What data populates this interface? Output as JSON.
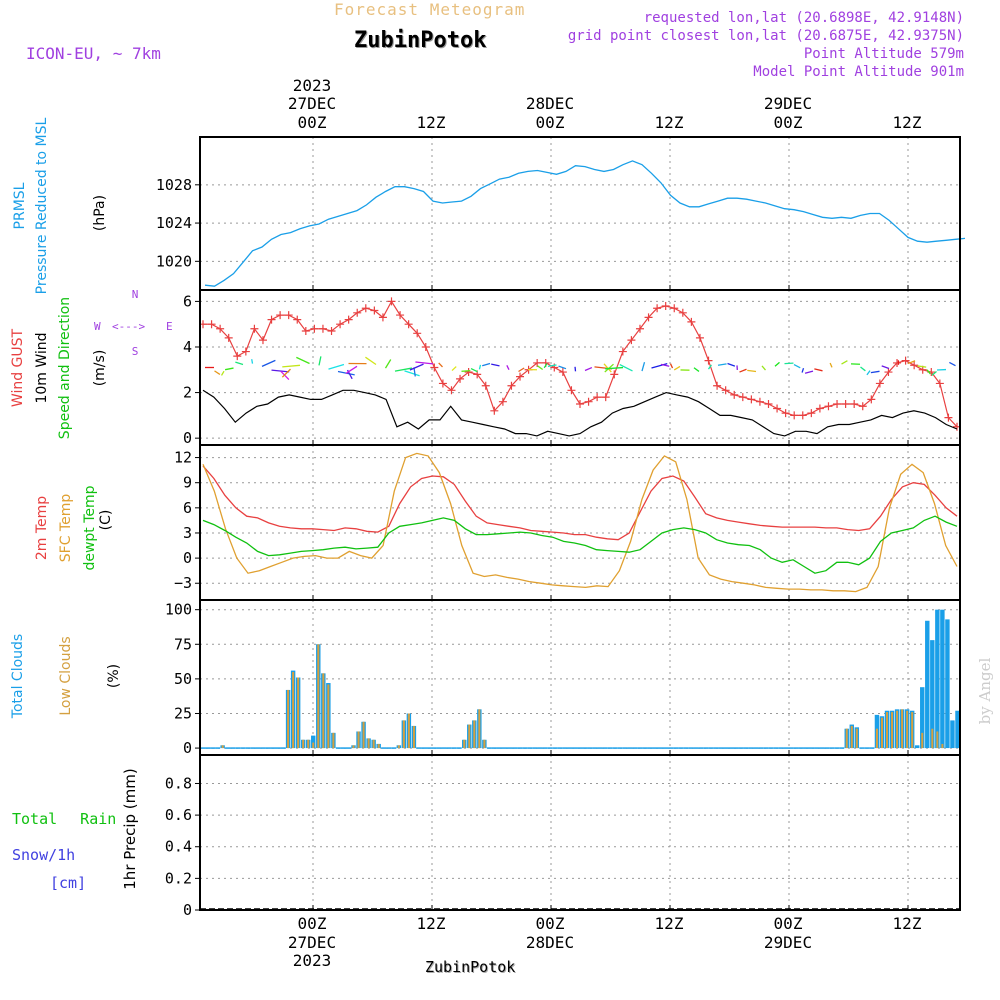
{
  "header": {
    "subtitle": "Forecast Meteogram",
    "location": "ZubinPotok",
    "model": "ICON-EU, ~ 7km",
    "requested": "requested lon,lat (20.6898E, 42.9148N)",
    "closest": "grid point closest lon,lat (20.6875E, 42.9375N)",
    "point_altitude": "Point Altitude 579m",
    "model_altitude": "Model Point Altitude 901m",
    "footer_location": "ZubinPotok",
    "watermark": "by Angel"
  },
  "colors": {
    "pressure": "#1a9fe8",
    "gust": "#e84040",
    "wind": "#000000",
    "temp2m": "#e84040",
    "sfc": "#e0a030",
    "dewpt": "#10c010",
    "total_clouds": "#1a9fe8",
    "low_clouds": "#d4a040",
    "rain": "#10c010",
    "snow": "#4040e0",
    "compass": "#a040e0",
    "header_purple": "#a040e0",
    "subtitle": "#e8c080"
  },
  "time_axis": {
    "top_year": "2023",
    "top_dates": [
      "27DEC",
      "28DEC",
      "29DEC"
    ],
    "ticks": [
      "00Z",
      "12Z",
      "00Z",
      "12Z",
      "00Z",
      "12Z"
    ],
    "bottom_dates": [
      "27DEC",
      "28DEC",
      "29DEC"
    ],
    "bottom_year": "2023"
  },
  "panels": {
    "pressure": {
      "labels": [
        "PRMSL",
        "Pressure Reduced to MSL"
      ],
      "unit": "(hPa)"
    },
    "wind": {
      "labels": [
        "Wind GUST",
        "10m Wind",
        "Speed and Direction"
      ],
      "unit": "(m/s)",
      "compass": {
        "n": "N",
        "s": "S",
        "e": "E",
        "w": "W",
        "line": "<--->"
      }
    },
    "temp": {
      "labels": [
        "2m Temp",
        "SFC Temp",
        "dewpt Temp"
      ],
      "unit": "(C)"
    },
    "clouds": {
      "labels": [
        "Total Clouds",
        "Low Clouds"
      ],
      "unit": "(%)"
    },
    "precip": {
      "labels": [
        "Total Rain",
        "Snow/1h",
        "[cm]"
      ],
      "unit": "1hr Precip (mm)"
    }
  },
  "chart_data": [
    {
      "type": "line",
      "name": "pressure",
      "x_hours_from_27DEC_00Z_start": -11,
      "step_hours": 1,
      "ylim": [
        1017,
        1033
      ],
      "yticks": [
        1020,
        1024,
        1028
      ],
      "series": [
        {
          "name": "PRMSL",
          "values": [
            1017.5,
            1017.4,
            1018,
            1018.7,
            1019.9,
            1021.1,
            1021.5,
            1022.3,
            1022.8,
            1023,
            1023.4,
            1023.7,
            1023.9,
            1024.4,
            1024.7,
            1025,
            1025.3,
            1025.9,
            1026.7,
            1027.3,
            1027.8,
            1027.8,
            1027.6,
            1027.3,
            1026.3,
            1026.1,
            1026.2,
            1026.3,
            1026.8,
            1027.6,
            1028.1,
            1028.6,
            1028.8,
            1029.2,
            1029.4,
            1029.5,
            1029.3,
            1029.1,
            1029.4,
            1030,
            1029.9,
            1029.6,
            1029.4,
            1029.6,
            1030.1,
            1030.5,
            1030.1,
            1029.2,
            1028.2,
            1026.9,
            1026.1,
            1025.7,
            1025.7,
            1026,
            1026.3,
            1026.6,
            1026.6,
            1026.5,
            1026.3,
            1026.1,
            1025.8,
            1025.5,
            1025.4,
            1025.2,
            1024.9,
            1024.6,
            1024.5,
            1024.6,
            1024.5,
            1024.8,
            1025,
            1025,
            1024.3,
            1023.4,
            1022.5,
            1022.1,
            1022,
            1022.1,
            1022.2,
            1022.3,
            1022.4
          ]
        }
      ]
    },
    {
      "type": "line",
      "name": "wind",
      "ylim": [
        -0.3,
        6.5
      ],
      "yticks": [
        0,
        2,
        4,
        6
      ],
      "series": [
        {
          "name": "Wind GUST",
          "values": [
            5,
            5,
            4.8,
            4.4,
            3.6,
            3.8,
            4.8,
            4.3,
            5.2,
            5.4,
            5.4,
            5.2,
            4.7,
            4.8,
            4.8,
            4.7,
            5,
            5.2,
            5.5,
            5.7,
            5.6,
            5.3,
            6,
            5.4,
            5,
            4.6,
            4,
            3.1,
            2.4,
            2.1,
            2.6,
            2.9,
            2.8,
            2.3,
            1.2,
            1.6,
            2.3,
            2.7,
            3,
            3.3,
            3.3,
            3.1,
            2.9,
            2.1,
            1.5,
            1.6,
            1.8,
            1.8,
            2.8,
            3.8,
            4.3,
            4.8,
            5.3,
            5.7,
            5.8,
            5.7,
            5.5,
            5.1,
            4.4,
            3.4,
            2.3,
            2.1,
            1.9,
            1.8,
            1.7,
            1.6,
            1.5,
            1.3,
            1.1,
            1,
            1,
            1.1,
            1.3,
            1.4,
            1.5,
            1.5,
            1.5,
            1.4,
            1.7,
            2.4,
            2.9,
            3.3,
            3.4,
            3.2,
            3,
            2.9,
            2.4,
            0.9,
            0.5
          ]
        },
        {
          "name": "10m Wind",
          "values": [
            2.1,
            1.8,
            1.3,
            0.7,
            1.1,
            1.4,
            1.5,
            1.8,
            1.9,
            1.8,
            1.7,
            1.7,
            1.9,
            2.1,
            2.1,
            2,
            1.9,
            1.7,
            0.5,
            0.7,
            0.4,
            0.8,
            0.8,
            1.4,
            0.8,
            0.7,
            0.6,
            0.5,
            0.4,
            0.2,
            0.2,
            0.1,
            0.3,
            0.2,
            0.1,
            0.2,
            0.5,
            0.7,
            1.1,
            1.3,
            1.4,
            1.6,
            1.8,
            2,
            1.9,
            1.8,
            1.6,
            1.3,
            1,
            1,
            0.9,
            0.8,
            0.5,
            0.2,
            0.1,
            0.3,
            0.3,
            0.2,
            0.5,
            0.6,
            0.6,
            0.7,
            0.8,
            1,
            0.9,
            1.1,
            1.2,
            1.1,
            0.9,
            0.6,
            0.4
          ]
        }
      ]
    },
    {
      "type": "line",
      "name": "temperature",
      "ylim": [
        -5,
        13.5
      ],
      "yticks": [
        -3,
        0,
        3,
        6,
        9,
        12
      ],
      "series": [
        {
          "name": "2m Temp",
          "values": [
            11,
            9.5,
            7.5,
            6,
            5,
            4.8,
            4.2,
            3.8,
            3.6,
            3.5,
            3.5,
            3.4,
            3.3,
            3.6,
            3.5,
            3.2,
            3.1,
            3.8,
            6.5,
            8.5,
            9.5,
            9.8,
            9.7,
            8.8,
            6.8,
            5,
            4.2,
            4,
            3.8,
            3.6,
            3.3,
            3.2,
            3.1,
            3,
            2.8,
            2.8,
            2.5,
            2.3,
            2.2,
            3,
            5.5,
            8,
            9.5,
            9.8,
            9.2,
            7.3,
            5.3,
            4.8,
            4.5,
            4.3,
            4.1,
            3.9,
            3.8,
            3.7,
            3.7,
            3.7,
            3.7,
            3.6,
            3.6,
            3.4,
            3.3,
            3.5,
            5,
            7,
            8.5,
            9,
            8.8,
            7.5,
            6,
            5
          ]
        },
        {
          "name": "SFC Temp",
          "values": [
            11.2,
            8,
            3.5,
            0,
            -1.8,
            -1.5,
            -1,
            -0.5,
            0,
            0.2,
            0.3,
            0,
            0,
            0.8,
            0.3,
            0,
            1.5,
            8,
            12,
            12.5,
            12.2,
            10.2,
            6.5,
            1.5,
            -1.8,
            -2.2,
            -2,
            -2.3,
            -2.5,
            -2.8,
            -3,
            -3.2,
            -3.3,
            -3.4,
            -3.5,
            -3.3,
            -3.4,
            -1.5,
            2,
            7,
            10.5,
            12.2,
            11.5,
            7,
            0,
            -2,
            -2.5,
            -2.8,
            -3,
            -3.2,
            -3.5,
            -3.6,
            -3.7,
            -3.7,
            -3.8,
            -3.8,
            -3.9,
            -3.9,
            -4,
            -3.5,
            -1,
            6,
            10,
            11.2,
            10.2,
            6.5,
            1.5,
            -1
          ]
        },
        {
          "name": "dewpt Temp",
          "values": [
            4.5,
            4,
            3.3,
            2.5,
            1.8,
            0.8,
            0.3,
            0.4,
            0.6,
            0.8,
            0.9,
            1,
            1.2,
            1.3,
            1.1,
            1.2,
            1.3,
            3,
            3.8,
            4,
            4.2,
            4.5,
            4.8,
            4.5,
            3.5,
            2.8,
            2.8,
            2.9,
            3,
            3.1,
            3,
            2.7,
            2.5,
            2,
            1.8,
            1.5,
            1,
            0.9,
            0.8,
            0.7,
            1,
            2,
            3,
            3.4,
            3.6,
            3.4,
            3,
            2.2,
            1.8,
            1.6,
            1.5,
            1,
            0,
            -0.5,
            -0.2,
            -1,
            -1.8,
            -1.5,
            -0.5,
            -0.5,
            -0.8,
            0,
            2,
            3,
            3.3,
            3.6,
            4.5,
            5,
            4.3,
            3.8
          ]
        }
      ]
    },
    {
      "type": "bar",
      "name": "clouds",
      "ylim": [
        -5,
        107
      ],
      "yticks": [
        0,
        25,
        50,
        75,
        100
      ],
      "series": [
        {
          "name": "Total Clouds",
          "values": [
            0,
            0,
            0,
            0,
            2,
            0,
            0,
            0,
            0,
            0,
            0,
            0,
            0,
            0,
            0,
            0,
            0,
            42,
            56,
            51,
            6,
            6,
            9,
            75,
            54,
            47,
            11,
            0,
            0,
            0,
            2,
            12,
            19,
            7,
            6,
            3,
            0,
            0,
            0,
            2,
            20,
            25,
            16,
            0,
            0,
            0,
            0,
            0,
            0,
            0,
            0,
            0,
            6,
            17,
            20,
            28,
            6,
            0,
            0,
            0,
            0,
            0,
            0,
            0,
            0,
            0,
            0,
            0,
            0,
            0,
            0,
            0,
            0,
            0,
            0,
            0,
            0,
            0,
            0,
            0,
            0,
            0,
            0,
            0,
            0,
            0,
            0,
            0,
            0,
            0,
            0,
            0,
            0,
            0,
            0,
            0,
            0,
            0,
            0,
            0,
            0,
            0,
            0,
            0,
            0,
            0,
            0,
            0,
            0,
            0,
            0,
            0,
            0,
            0,
            0,
            0,
            0,
            0,
            0,
            0,
            0,
            0,
            0,
            0,
            0,
            0,
            0,
            0,
            14,
            17,
            15,
            0,
            0,
            0,
            24,
            23,
            27,
            27,
            28,
            28,
            28,
            27,
            2,
            44,
            92,
            78,
            100,
            100,
            93,
            20,
            27
          ]
        },
        {
          "name": "Low Clouds",
          "values": [
            0,
            0,
            0,
            0,
            2,
            0,
            0,
            0,
            0,
            0,
            0,
            0,
            0,
            0,
            0,
            0,
            0,
            42,
            55,
            51,
            6,
            6,
            4,
            75,
            54,
            46,
            11,
            0,
            0,
            0,
            2,
            12,
            19,
            7,
            6,
            3,
            0,
            0,
            0,
            2,
            20,
            25,
            16,
            0,
            0,
            0,
            0,
            0,
            0,
            0,
            0,
            0,
            6,
            17,
            20,
            28,
            6,
            0,
            0,
            0,
            0,
            0,
            0,
            0,
            0,
            0,
            0,
            0,
            0,
            0,
            0,
            0,
            0,
            0,
            0,
            0,
            0,
            0,
            0,
            0,
            0,
            0,
            0,
            0,
            0,
            0,
            0,
            0,
            0,
            0,
            0,
            0,
            0,
            0,
            0,
            0,
            0,
            0,
            0,
            0,
            0,
            0,
            0,
            0,
            0,
            0,
            0,
            0,
            0,
            0,
            0,
            0,
            0,
            0,
            0,
            0,
            0,
            0,
            0,
            0,
            0,
            0,
            0,
            0,
            0,
            0,
            0,
            0,
            14,
            16,
            14,
            0,
            0,
            0,
            14,
            22,
            26,
            26,
            27,
            28,
            27,
            26,
            0,
            11,
            0,
            14,
            12,
            3,
            0,
            0,
            0
          ]
        }
      ]
    },
    {
      "type": "bar",
      "name": "precip",
      "ylim": [
        0,
        0.98
      ],
      "yticks": [
        0,
        0.2,
        0.4,
        0.6,
        0.8
      ],
      "series": [
        {
          "name": "Total Rain",
          "values": []
        }
      ]
    }
  ]
}
